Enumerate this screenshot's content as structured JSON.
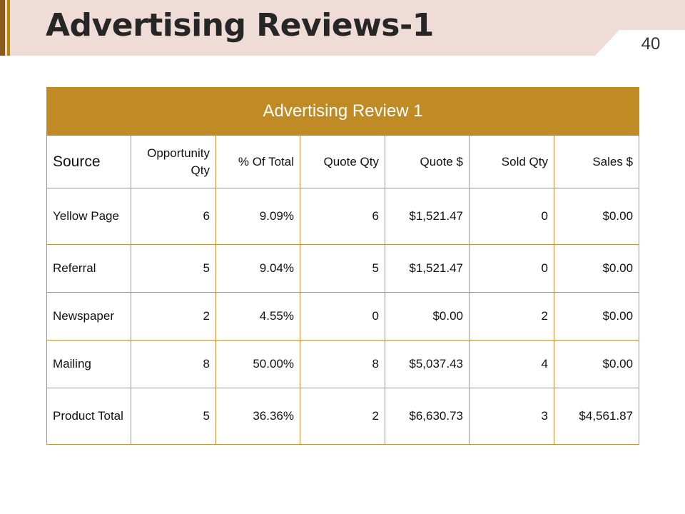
{
  "header": {
    "title": "Advertising Reviews-1",
    "page_number": "40"
  },
  "table": {
    "caption": "Advertising Review 1",
    "columns": [
      "Source",
      "Opportunity Qty",
      "% Of Total",
      "Quote Qty",
      "Quote $",
      "Sold Qty",
      "Sales $"
    ],
    "rows": [
      [
        "Yellow Page",
        "6",
        "9.09%",
        "6",
        "$1,521.47",
        "0",
        "$0.00"
      ],
      [
        "Referral",
        "5",
        "9.04%",
        "5",
        "$1,521.47",
        "0",
        "$0.00"
      ],
      [
        "Newspaper",
        "2",
        "4.55%",
        "0",
        "$0.00",
        "2",
        "$0.00"
      ],
      [
        "Mailing",
        "8",
        "50.00%",
        "8",
        "$5,037.43",
        "4",
        "$0.00"
      ],
      [
        "Product Total",
        "5",
        "36.36%",
        "2",
        "$6,630.73",
        "3",
        "$4,561.87"
      ]
    ]
  },
  "colors": {
    "accent": "#c08a25",
    "header_band": "#efdcd6",
    "bar_dark": "#8a5a1e",
    "bar_gold": "#b8860b"
  }
}
